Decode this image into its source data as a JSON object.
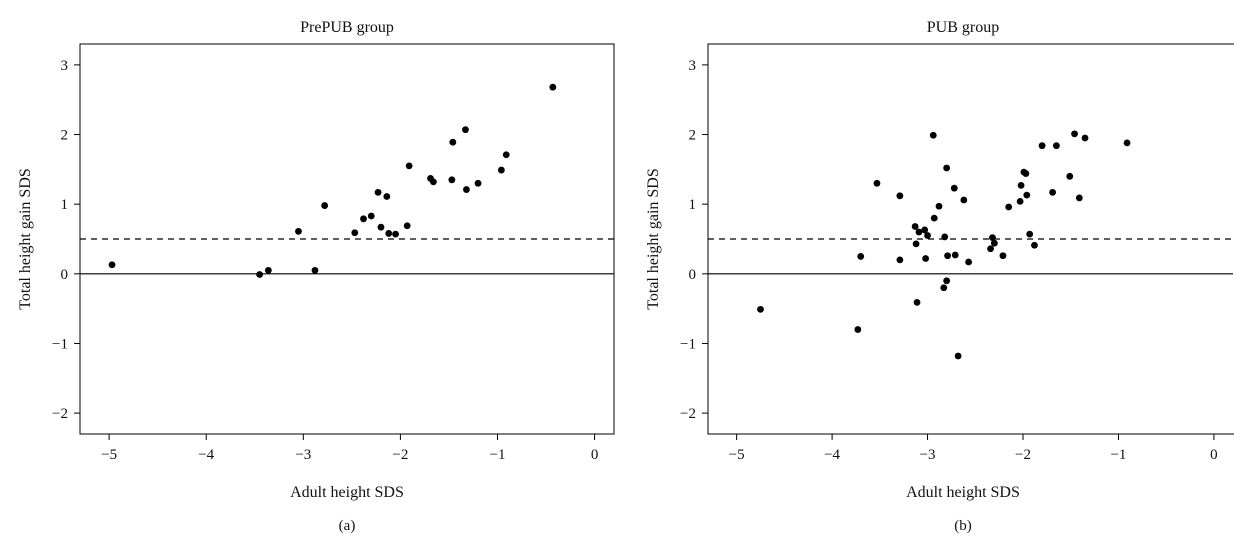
{
  "figure": {
    "panel_labels": [
      "(a)",
      "(b)"
    ]
  },
  "chart_data": [
    {
      "type": "scatter",
      "title": "PrePUB group",
      "xlabel": "Adult height SDS",
      "ylabel": "Total height gain SDS",
      "xlim": [
        -5.3,
        0.2
      ],
      "ylim": [
        -2.3,
        3.3
      ],
      "xticks": [
        -5,
        -4,
        -3,
        -2,
        -1,
        0
      ],
      "yticks": [
        -2,
        -1,
        0,
        1,
        2,
        3
      ],
      "reference_lines": [
        {
          "y": 0,
          "style": "solid"
        },
        {
          "y": 0.5,
          "style": "dashed"
        }
      ],
      "points": [
        {
          "x": -4.97,
          "y": 0.13
        },
        {
          "x": -3.45,
          "y": -0.01
        },
        {
          "x": -3.36,
          "y": 0.05
        },
        {
          "x": -3.05,
          "y": 0.61
        },
        {
          "x": -2.88,
          "y": 0.05
        },
        {
          "x": -2.78,
          "y": 0.98
        },
        {
          "x": -2.47,
          "y": 0.59
        },
        {
          "x": -2.38,
          "y": 0.79
        },
        {
          "x": -2.3,
          "y": 0.83
        },
        {
          "x": -2.23,
          "y": 1.17
        },
        {
          "x": -2.2,
          "y": 0.67
        },
        {
          "x": -2.14,
          "y": 1.11
        },
        {
          "x": -2.12,
          "y": 0.58
        },
        {
          "x": -2.05,
          "y": 0.57
        },
        {
          "x": -1.93,
          "y": 0.69
        },
        {
          "x": -1.91,
          "y": 1.55
        },
        {
          "x": -1.69,
          "y": 1.37
        },
        {
          "x": -1.66,
          "y": 1.32
        },
        {
          "x": -1.47,
          "y": 1.35
        },
        {
          "x": -1.46,
          "y": 1.89
        },
        {
          "x": -1.33,
          "y": 2.07
        },
        {
          "x": -1.32,
          "y": 1.21
        },
        {
          "x": -1.2,
          "y": 1.3
        },
        {
          "x": -0.96,
          "y": 1.49
        },
        {
          "x": -0.91,
          "y": 1.71
        },
        {
          "x": -0.43,
          "y": 2.68
        }
      ]
    },
    {
      "type": "scatter",
      "title": "PUB group",
      "xlabel": "Adult height SDS",
      "ylabel": "Total height gain SDS",
      "xlim": [
        -5.3,
        0.2
      ],
      "ylim": [
        -2.3,
        3.3
      ],
      "xticks": [
        -5,
        -4,
        -3,
        -2,
        -1,
        0
      ],
      "yticks": [
        -2,
        -1,
        0,
        1,
        2,
        3
      ],
      "reference_lines": [
        {
          "y": 0,
          "style": "solid"
        },
        {
          "y": 0.5,
          "style": "dashed"
        }
      ],
      "points": [
        {
          "x": -4.75,
          "y": -0.51
        },
        {
          "x": -3.73,
          "y": -0.8
        },
        {
          "x": -3.7,
          "y": 0.25
        },
        {
          "x": -3.53,
          "y": 1.3
        },
        {
          "x": -3.29,
          "y": 1.12
        },
        {
          "x": -3.29,
          "y": 0.2
        },
        {
          "x": -3.13,
          "y": 0.68
        },
        {
          "x": -3.12,
          "y": 0.43
        },
        {
          "x": -3.11,
          "y": -0.41
        },
        {
          "x": -3.09,
          "y": 0.6
        },
        {
          "x": -3.03,
          "y": 0.63
        },
        {
          "x": -3.02,
          "y": 0.22
        },
        {
          "x": -3.0,
          "y": 0.55
        },
        {
          "x": -2.94,
          "y": 1.99
        },
        {
          "x": -2.93,
          "y": 0.8
        },
        {
          "x": -2.88,
          "y": 0.97
        },
        {
          "x": -2.83,
          "y": -0.2
        },
        {
          "x": -2.82,
          "y": 0.53
        },
        {
          "x": -2.8,
          "y": 1.52
        },
        {
          "x": -2.8,
          "y": -0.1
        },
        {
          "x": -2.79,
          "y": 0.26
        },
        {
          "x": -2.72,
          "y": 1.23
        },
        {
          "x": -2.71,
          "y": 0.27
        },
        {
          "x": -2.68,
          "y": -1.18
        },
        {
          "x": -2.62,
          "y": 1.06
        },
        {
          "x": -2.57,
          "y": 0.17
        },
        {
          "x": -2.34,
          "y": 0.36
        },
        {
          "x": -2.32,
          "y": 0.52
        },
        {
          "x": -2.3,
          "y": 0.44
        },
        {
          "x": -2.21,
          "y": 0.26
        },
        {
          "x": -2.15,
          "y": 0.96
        },
        {
          "x": -2.03,
          "y": 1.04
        },
        {
          "x": -2.02,
          "y": 1.27
        },
        {
          "x": -1.99,
          "y": 1.46
        },
        {
          "x": -1.97,
          "y": 1.44
        },
        {
          "x": -1.96,
          "y": 1.13
        },
        {
          "x": -1.93,
          "y": 0.57
        },
        {
          "x": -1.88,
          "y": 0.41
        },
        {
          "x": -1.8,
          "y": 1.84
        },
        {
          "x": -1.69,
          "y": 1.17
        },
        {
          "x": -1.65,
          "y": 1.84
        },
        {
          "x": -1.51,
          "y": 1.4
        },
        {
          "x": -1.46,
          "y": 2.01
        },
        {
          "x": -1.41,
          "y": 1.09
        },
        {
          "x": -1.35,
          "y": 1.95
        },
        {
          "x": -0.91,
          "y": 1.88
        }
      ]
    }
  ]
}
